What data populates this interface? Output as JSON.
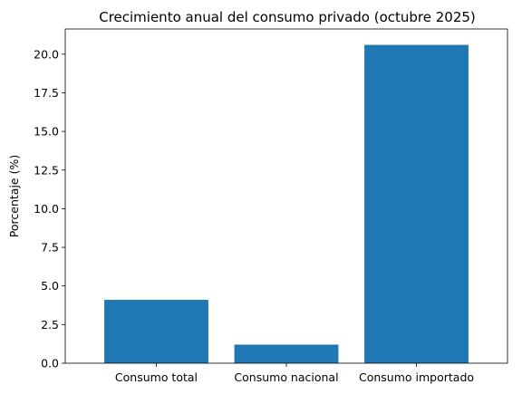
{
  "chart_data": {
    "type": "bar",
    "title": "Crecimiento anual del consumo privado (octubre 2025)",
    "xlabel": "",
    "ylabel": "Porcentaje (%)",
    "categories": [
      "Consumo total",
      "Consumo nacional",
      "Consumo importado"
    ],
    "values": [
      4.1,
      1.2,
      20.6
    ],
    "ylim": [
      0,
      21.63
    ],
    "yticks": [
      0.0,
      2.5,
      5.0,
      7.5,
      10.0,
      12.5,
      15.0,
      17.5,
      20.0
    ],
    "ytick_labels": [
      "0.0",
      "2.5",
      "5.0",
      "7.5",
      "10.0",
      "12.5",
      "15.0",
      "17.5",
      "20.0"
    ],
    "bar_color": "#1f77b4",
    "grid": false,
    "legend": "none"
  }
}
